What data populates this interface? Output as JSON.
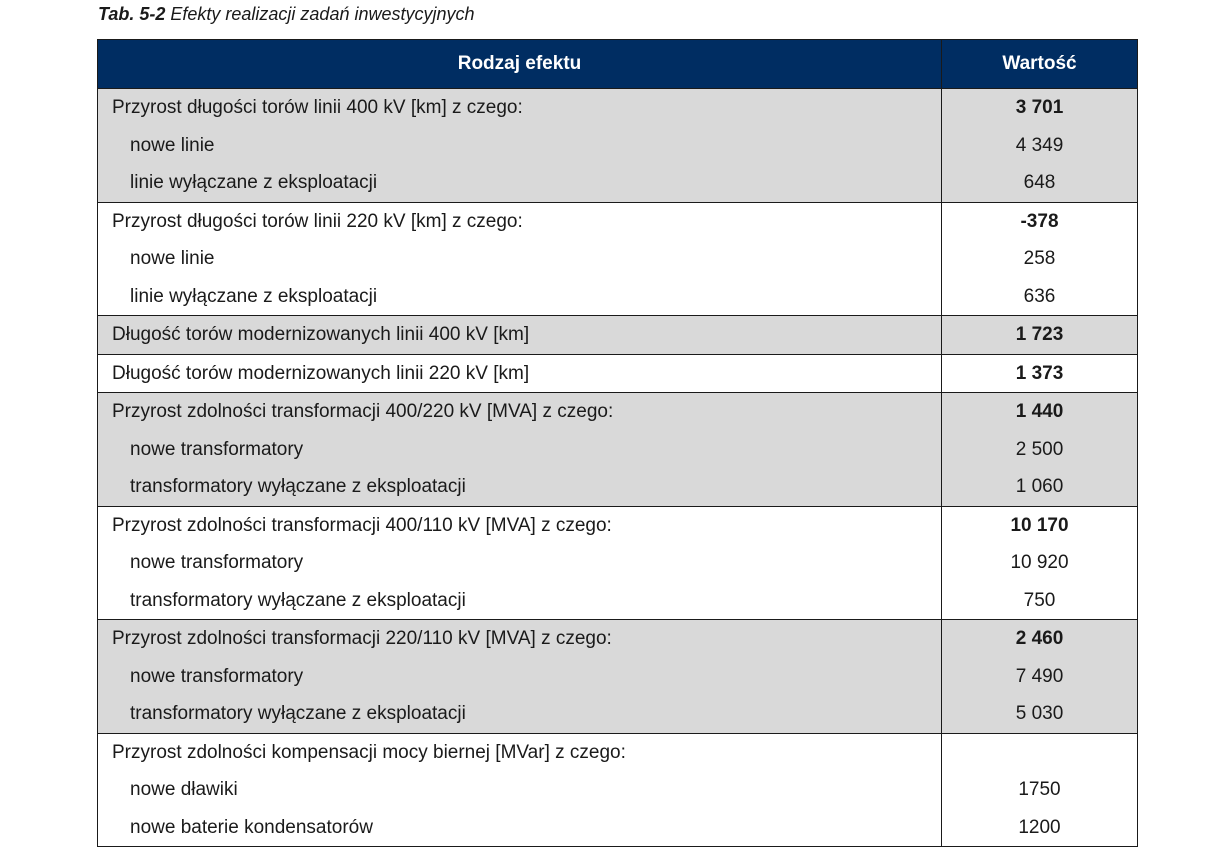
{
  "caption": {
    "number": "Tab. 5-2",
    "title": "Efekty realizacji zadań inwestycyjnych"
  },
  "table": {
    "headers": [
      "Rodzaj efektu",
      "Wartość"
    ],
    "groups": [
      {
        "shaded": true,
        "rows": [
          {
            "label": "Przyrost długości torów linii 400 kV [km] z czego:",
            "value": "3 701"
          },
          {
            "label": "nowe linie",
            "value": "4 349"
          },
          {
            "label": "linie wyłączane z eksploatacji",
            "value": "648"
          }
        ]
      },
      {
        "shaded": false,
        "rows": [
          {
            "label": "Przyrost długości torów linii 220 kV [km] z czego:",
            "value": "-378"
          },
          {
            "label": "nowe linie",
            "value": "258"
          },
          {
            "label": "linie wyłączane z eksploatacji",
            "value": "636"
          }
        ]
      },
      {
        "shaded": true,
        "rows": [
          {
            "label": "Długość torów modernizowanych linii 400 kV [km]",
            "value": "1 723"
          }
        ]
      },
      {
        "shaded": false,
        "rows": [
          {
            "label": "Długość torów modernizowanych linii 220 kV [km]",
            "value": "1 373"
          }
        ]
      },
      {
        "shaded": true,
        "rows": [
          {
            "label": "Przyrost zdolności transformacji 400/220 kV [MVA] z czego:",
            "value": "1 440"
          },
          {
            "label": "nowe transformatory",
            "value": "2 500"
          },
          {
            "label": "transformatory wyłączane z eksploatacji",
            "value": "1 060"
          }
        ]
      },
      {
        "shaded": false,
        "rows": [
          {
            "label": "Przyrost zdolności transformacji 400/110 kV [MVA] z czego:",
            "value": "10 170"
          },
          {
            "label": "nowe transformatory",
            "value": "10 920"
          },
          {
            "label": "transformatory wyłączane z eksploatacji",
            "value": "750"
          }
        ]
      },
      {
        "shaded": true,
        "rows": [
          {
            "label": "Przyrost zdolności transformacji 220/110 kV [MVA] z czego:",
            "value": "2 460"
          },
          {
            "label": "nowe transformatory",
            "value": "7 490"
          },
          {
            "label": "transformatory wyłączane z eksploatacji",
            "value": "5 030"
          }
        ]
      },
      {
        "shaded": false,
        "rows": [
          {
            "label": "Przyrost zdolności kompensacji mocy biernej [MVar] z czego:",
            "value": ""
          },
          {
            "label": "nowe dławiki",
            "value": "1750"
          },
          {
            "label": "nowe baterie kondensatorów",
            "value": "1200"
          }
        ]
      }
    ]
  },
  "colors": {
    "header_bg": "#002d62",
    "header_text": "#ffffff",
    "shaded_row_bg": "#d9d9d9"
  }
}
